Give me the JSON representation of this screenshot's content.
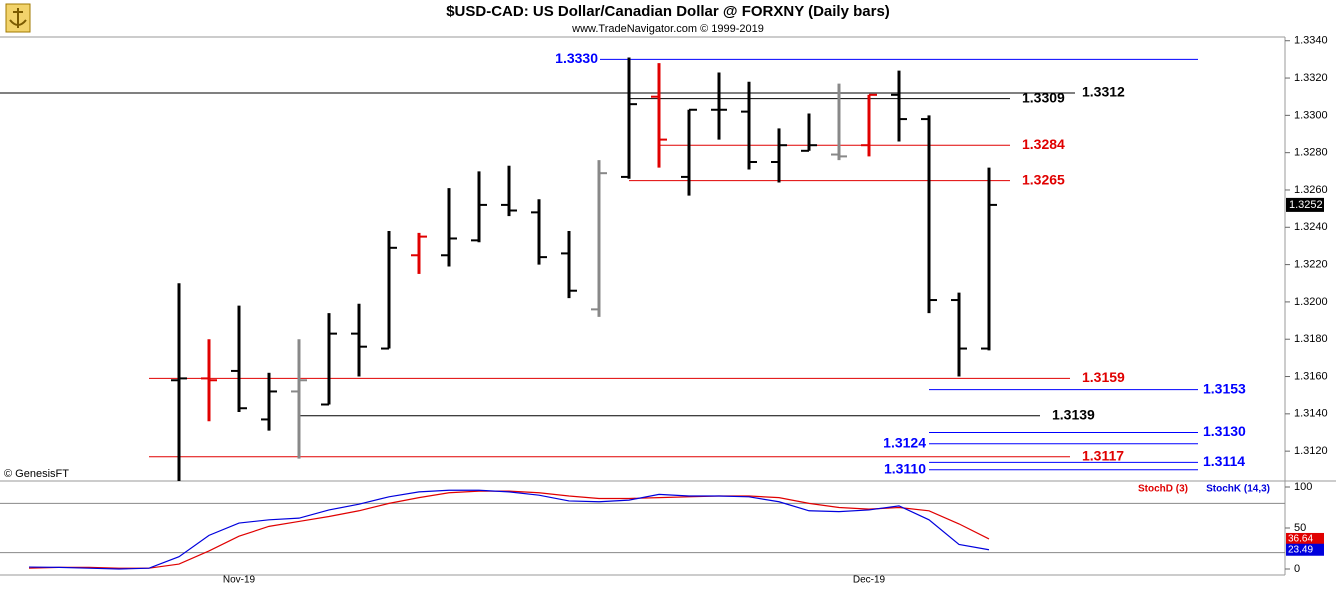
{
  "chart_data": [
    {
      "type": "ohlc",
      "title": "$USD-CAD:  US Dollar/Canadian Dollar @ FORXNY  (Daily bars)",
      "subtitle": "www.TradeNavigator.com © 1999-2019",
      "annotation": "© GenesisFT",
      "series": [
        {
          "open": [
            null,
            null,
            null,
            null,
            null,
            1.3158,
            1.3159,
            1.3163,
            1.3137,
            1.3152,
            1.3145,
            1.3183,
            1.3175,
            1.3225,
            1.3225,
            1.3233,
            1.3252,
            1.3248,
            1.3226,
            1.3196,
            1.3267,
            1.331,
            1.3267,
            1.3303,
            1.3302,
            1.3275,
            1.3281,
            1.3279,
            1.3284,
            1.3311,
            1.3298,
            1.3201,
            1.3175
          ],
          "high": [
            null,
            null,
            null,
            null,
            null,
            1.321,
            1.318,
            1.3198,
            1.3162,
            1.318,
            1.3194,
            1.3199,
            1.3238,
            1.3237,
            1.3261,
            1.327,
            1.3273,
            1.3255,
            1.3238,
            1.3276,
            1.3331,
            1.3328,
            1.3303,
            1.3323,
            1.3318,
            1.3293,
            1.3301,
            1.3317,
            1.3311,
            1.3324,
            1.33,
            1.3205,
            1.3272
          ],
          "low": [
            null,
            null,
            null,
            null,
            null,
            1.3104,
            1.3136,
            1.3141,
            1.3131,
            1.3116,
            1.3145,
            1.316,
            1.3175,
            1.3215,
            1.3219,
            1.3232,
            1.3246,
            1.322,
            1.3202,
            1.3192,
            1.3266,
            1.3272,
            1.3257,
            1.3287,
            1.3271,
            1.3264,
            1.3281,
            1.3276,
            1.3278,
            1.3286,
            1.3194,
            1.316,
            1.3174
          ],
          "close": [
            null,
            null,
            null,
            null,
            null,
            1.3159,
            1.3158,
            1.3143,
            1.3152,
            1.3158,
            1.3183,
            1.3176,
            1.3229,
            1.3235,
            1.3234,
            1.3252,
            1.3249,
            1.3224,
            1.3206,
            1.3269,
            1.3306,
            1.3287,
            1.3303,
            1.3303,
            1.3275,
            1.3284,
            1.3284,
            1.3278,
            1.3311,
            1.3298,
            1.3201,
            1.3175,
            1.3252
          ],
          "colors": [
            null,
            null,
            null,
            null,
            null,
            "#000000",
            "#e00000",
            "#000000",
            "#000000",
            "#888888",
            "#000000",
            "#000000",
            "#000000",
            "#e00000",
            "#000000",
            "#000000",
            "#000000",
            "#000000",
            "#000000",
            "#888888",
            "#000000",
            "#e00000",
            "#000000",
            "#000000",
            "#000000",
            "#000000",
            "#000000",
            "#888888",
            "#e00000",
            "#000000",
            "#000000",
            "#000000",
            "#000000"
          ]
        }
      ],
      "last_value": 1.3252,
      "ylim": [
        1.3104,
        1.3342
      ],
      "yticks": [
        {
          "value": 1.312,
          "label": "1.3120"
        },
        {
          "value": 1.314,
          "label": "1.3140"
        },
        {
          "value": 1.316,
          "label": "1.3160"
        },
        {
          "value": 1.318,
          "label": "1.3180"
        },
        {
          "value": 1.32,
          "label": "1.3200"
        },
        {
          "value": 1.322,
          "label": "1.3220"
        },
        {
          "value": 1.324,
          "label": "1.3240"
        },
        {
          "value": 1.326,
          "label": "1.3260"
        },
        {
          "value": 1.328,
          "label": "1.3280"
        },
        {
          "value": 1.33,
          "label": "1.3300"
        },
        {
          "value": 1.332,
          "label": "1.3320"
        },
        {
          "value": 1.334,
          "label": "1.3340"
        }
      ],
      "levels": [
        {
          "price": {
            "value": 1.333,
            "label": "1.3330"
          },
          "color": "#0000ff"
        },
        {
          "price": 1.3312,
          "color": "#000000"
        },
        {
          "price": 1.3309,
          "color": "#000000"
        },
        {
          "price": 1.3284,
          "color": "#e00000"
        },
        {
          "price": 1.3265,
          "color": "#e00000"
        },
        {
          "price": 1.3159,
          "color": "#e00000"
        },
        {
          "price": 1.3153,
          "color": "#0000ff"
        },
        {
          "price": 1.3139,
          "color": "#000000"
        },
        {
          "price": {
            "value": 1.313,
            "label": "1.3130"
          },
          "color": "#0000ff"
        },
        {
          "price": 1.3124,
          "color": "#0000ff"
        },
        {
          "price": 1.3117,
          "color": "#e00000"
        },
        {
          "price": 1.3114,
          "color": "#0000ff"
        },
        {
          "price": {
            "value": 1.311,
            "label": "1.3110"
          },
          "color": "#0000ff"
        }
      ]
    },
    {
      "type": "line",
      "categories": [
        null,
        null,
        null,
        null,
        null,
        null,
        null,
        "Nov-19",
        null,
        null,
        null,
        null,
        null,
        null,
        null,
        null,
        null,
        null,
        null,
        null,
        null,
        null,
        null,
        null,
        null,
        null,
        null,
        null,
        "Dec-19",
        null,
        null,
        null,
        null
      ],
      "series": [
        {
          "name": "StochD (3)",
          "color": "#e00000",
          "values": [
            1,
            2,
            2,
            1,
            1,
            6,
            22,
            40,
            52,
            58,
            64,
            71,
            80,
            87,
            93,
            95,
            95,
            93,
            89,
            86,
            86,
            87,
            88,
            89,
            89,
            87,
            80,
            75,
            73,
            75,
            71,
            55,
            36.64
          ]
        },
        {
          "name": "StochK (14,3)",
          "color": "#0000dd",
          "values": [
            2.4,
            2,
            1,
            0,
            1,
            15,
            41,
            56,
            60,
            62,
            72,
            79,
            88,
            94,
            96,
            96,
            94,
            90,
            83,
            82,
            84,
            91,
            89,
            89,
            88,
            82,
            71,
            70,
            72,
            77,
            60,
            30,
            23.49
          ]
        }
      ],
      "ylim": [
        -7.3,
        107.3
      ],
      "yticks": [
        0,
        50,
        100
      ],
      "ref_lines": [
        20,
        80
      ]
    }
  ]
}
